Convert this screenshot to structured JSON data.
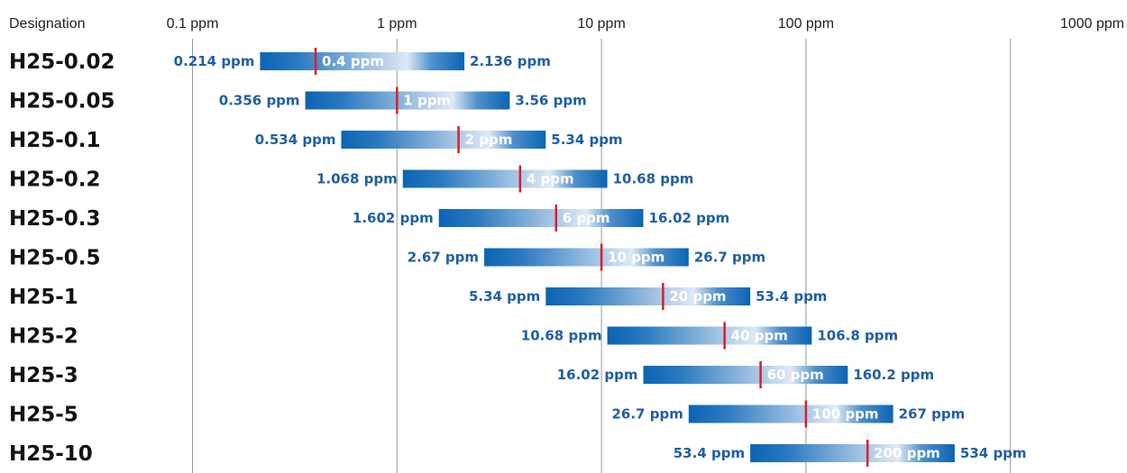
{
  "chart_data": {
    "type": "bar",
    "subtype": "range-bar",
    "scale": "log",
    "xlim": [
      0.1,
      1000
    ],
    "header_label": "Designation",
    "ticks": [
      {
        "value": 0.1,
        "label": "0.1 ppm"
      },
      {
        "value": 1,
        "label": "1 ppm"
      },
      {
        "value": 10,
        "label": "10 ppm"
      },
      {
        "value": 100,
        "label": "100 ppm"
      },
      {
        "value": 1000,
        "label": "1000 ppm"
      }
    ],
    "grid": true,
    "colors": {
      "bar_dark": "#0a64b4",
      "bar_light": "#d8e4f4",
      "marker": "#d6202a",
      "value_text": "#1f5fa6"
    },
    "rows": [
      {
        "name": "H25-0.02",
        "low": 0.214,
        "mid": 0.4,
        "high": 2.136,
        "low_label": "0.214 ppm",
        "mid_label": "0.4 ppm",
        "high_label": "2.136 ppm"
      },
      {
        "name": "H25-0.05",
        "low": 0.356,
        "mid": 1,
        "high": 3.56,
        "low_label": "0.356 ppm",
        "mid_label": "1 ppm",
        "high_label": "3.56 ppm"
      },
      {
        "name": "H25-0.1",
        "low": 0.534,
        "mid": 2,
        "high": 5.34,
        "low_label": "0.534 ppm",
        "mid_label": "2 ppm",
        "high_label": "5.34 ppm"
      },
      {
        "name": "H25-0.2",
        "low": 1.068,
        "mid": 4,
        "high": 10.68,
        "low_label": "1.068 ppm",
        "mid_label": "4 ppm",
        "high_label": "10.68 ppm"
      },
      {
        "name": "H25-0.3",
        "low": 1.602,
        "mid": 6,
        "high": 16.02,
        "low_label": "1.602 ppm",
        "mid_label": "6 ppm",
        "high_label": "16.02 ppm"
      },
      {
        "name": "H25-0.5",
        "low": 2.67,
        "mid": 10,
        "high": 26.7,
        "low_label": "2.67 ppm",
        "mid_label": "10 ppm",
        "high_label": "26.7 ppm"
      },
      {
        "name": "H25-1",
        "low": 5.34,
        "mid": 20,
        "high": 53.4,
        "low_label": "5.34 ppm",
        "mid_label": "20 ppm",
        "high_label": "53.4 ppm"
      },
      {
        "name": "H25-2",
        "low": 10.68,
        "mid": 40,
        "high": 106.8,
        "low_label": "10.68 ppm",
        "mid_label": "40 ppm",
        "high_label": "106.8 ppm"
      },
      {
        "name": "H25-3",
        "low": 16.02,
        "mid": 60,
        "high": 160.2,
        "low_label": "16.02 ppm",
        "mid_label": "60 ppm",
        "high_label": "160.2 ppm"
      },
      {
        "name": "H25-5",
        "low": 26.7,
        "mid": 100,
        "high": 267,
        "low_label": "26.7 ppm",
        "mid_label": "100 ppm",
        "high_label": "267 ppm"
      },
      {
        "name": "H25-10",
        "low": 53.4,
        "mid": 200,
        "high": 534,
        "low_label": "53.4 ppm",
        "mid_label": "200 ppm",
        "high_label": "534 ppm"
      }
    ]
  }
}
